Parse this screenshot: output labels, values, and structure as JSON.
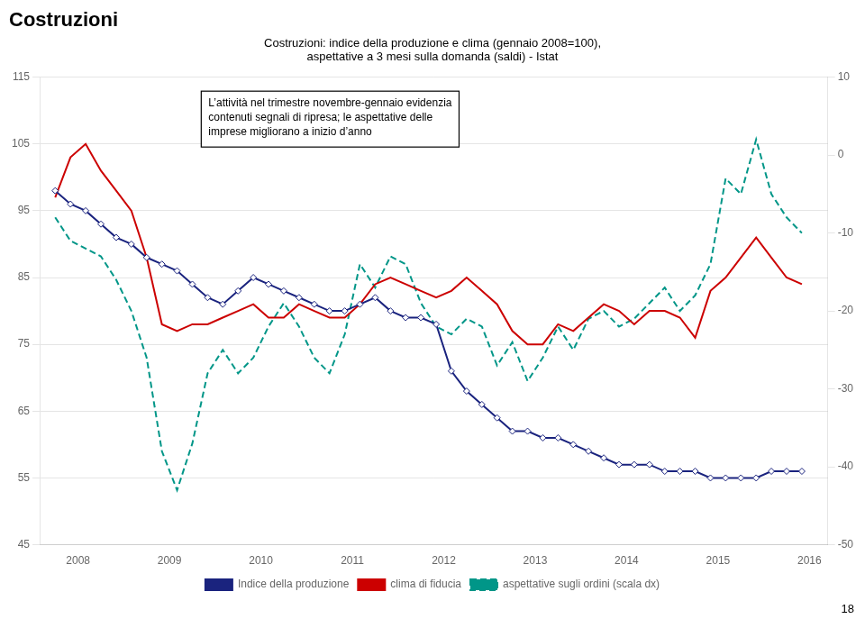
{
  "chart_data": {
    "type": "line",
    "title": "Costruzioni",
    "subtitle": [
      "Costruzioni: indice della produzione e clima (gennaio 2008=100),",
      "aspettative a 3 mesi sulla domanda (saldi) - Istat"
    ],
    "annotations": [
      "L’attività nel trimestre novembre-gennaio evidenzia\ncontenuti segnali di ripresa; le aspettative delle\nimprese migliorano a inizio d’anno",
      "18"
    ],
    "x": [
      2007.75,
      2007.917,
      2008.083,
      2008.25,
      2008.417,
      2008.583,
      2008.75,
      2008.917,
      2009.083,
      2009.25,
      2009.417,
      2009.583,
      2009.75,
      2009.917,
      2010.083,
      2010.25,
      2010.417,
      2010.583,
      2010.75,
      2010.917,
      2011.083,
      2011.25,
      2011.417,
      2011.583,
      2011.75,
      2011.917,
      2012.083,
      2012.25,
      2012.417,
      2012.583,
      2012.75,
      2012.917,
      2013.083,
      2013.25,
      2013.417,
      2013.583,
      2013.75,
      2013.917,
      2014.083,
      2014.25,
      2014.417,
      2014.583,
      2014.75,
      2014.917,
      2015.083,
      2015.25,
      2015.417,
      2015.583,
      2015.75,
      2015.917
    ],
    "xlim": [
      2007.58,
      2016.2
    ],
    "xticks": [
      2008,
      2009,
      2010,
      2011,
      2012,
      2013,
      2014,
      2015,
      2016
    ],
    "ylim": [
      45,
      115
    ],
    "yticks": [
      45,
      55,
      65,
      75,
      85,
      95,
      105,
      115
    ],
    "y2lim": [
      -50,
      10
    ],
    "y2ticks": [
      -50,
      -40,
      -30,
      -20,
      -10,
      0,
      10
    ],
    "grid": true,
    "legend": "bottom",
    "series": [
      {
        "name": "Indice della produzione",
        "color": "#1a237e",
        "marker": "diamond",
        "line_style": "solid",
        "values": [
          98,
          96,
          95,
          93,
          91,
          90,
          88,
          87,
          86,
          84,
          82,
          81,
          83,
          85,
          84,
          83,
          82,
          81,
          80,
          80,
          81,
          82,
          80,
          79,
          79,
          78,
          71,
          68,
          66,
          64,
          62,
          62,
          61,
          61,
          60,
          59,
          58,
          57,
          57,
          57,
          56,
          56,
          56,
          55,
          55,
          55,
          55,
          56,
          56,
          56
        ]
      },
      {
        "name": "clima di fiducia",
        "color": "#cc0000",
        "line_style": "solid",
        "values": [
          97,
          103,
          105,
          101,
          98,
          95,
          88,
          78,
          77,
          78,
          78,
          79,
          80,
          81,
          79,
          79,
          81,
          80,
          79,
          79,
          81,
          84,
          85,
          84,
          83,
          82,
          83,
          85,
          83,
          81,
          77,
          75,
          75,
          78,
          77,
          79,
          81,
          80,
          78,
          80,
          80,
          79,
          76,
          83,
          85,
          88,
          91,
          88,
          85,
          84
        ]
      },
      {
        "name": "aspettative sugli ordini (scala dx)",
        "color": "#009688",
        "line_style": "dashed",
        "axis": "y2",
        "values": [
          -8,
          -11,
          -12,
          -13,
          -16,
          -20,
          -26,
          -38,
          -43,
          -37,
          -28,
          -25,
          -28,
          -26,
          -22,
          -19,
          -22,
          -26,
          -28,
          -23,
          -14,
          -17,
          -13,
          -14,
          -19,
          -22,
          -23,
          -21,
          -22,
          -27,
          -24,
          -29,
          -26,
          -22,
          -25,
          -21,
          -20,
          -22,
          -21,
          -19,
          -17,
          -20,
          -18,
          -14,
          -3,
          -5,
          2,
          -5,
          -8,
          -10
        ]
      }
    ]
  }
}
